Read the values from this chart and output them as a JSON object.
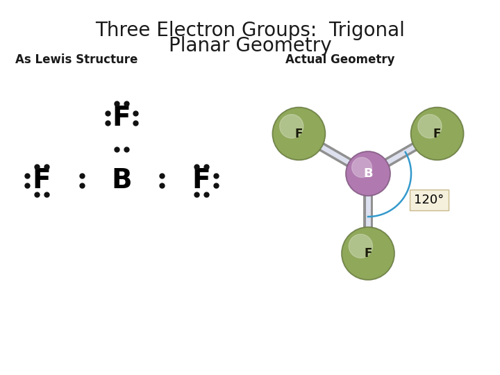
{
  "title_line1": "Three Electron Groups:  Trigonal",
  "title_line2": "Planar Geometry",
  "title_fontsize": 20,
  "title_color": "#1a1a1a",
  "bg_color": "#ffffff",
  "left_label": "As Lewis Structure",
  "right_label": "Actual Geometry",
  "label_fontsize": 12,
  "atom_B_color": "#b07ab0",
  "atom_F_color": "#8fa85a",
  "bond_color": "#cccccc",
  "angle_label": "120°",
  "angle_color": "#3399cc",
  "angle_box_color": "#f5f0dc"
}
